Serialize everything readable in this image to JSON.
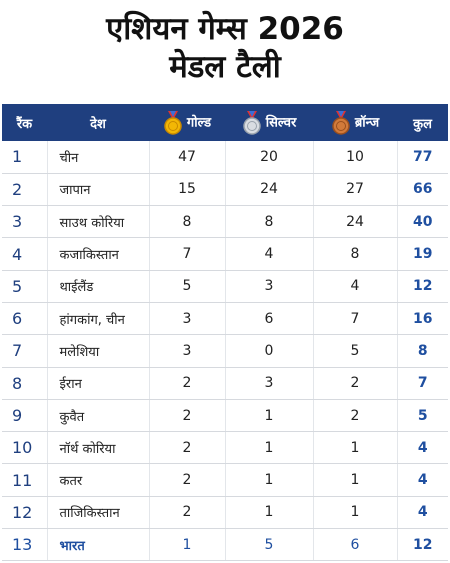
{
  "header": {
    "title_line1": "एशियन गेम्स 2026",
    "title_line2": "मेडल टैली"
  },
  "table": {
    "columns": [
      "रैंक",
      "देश",
      "गोल्ड",
      "सिल्वर",
      "ब्रॉन्ज",
      "कुल"
    ],
    "rows": [
      [
        1,
        "चीन",
        47,
        20,
        10,
        77
      ],
      [
        2,
        "जापान",
        15,
        24,
        27,
        66
      ],
      [
        3,
        "साउथ कोरिया",
        8,
        8,
        24,
        40
      ],
      [
        4,
        "कजाकिस्तान",
        7,
        4,
        8,
        19
      ],
      [
        5,
        "थाईलैंड",
        5,
        3,
        4,
        12
      ],
      [
        6,
        "हांगकांग, चीन",
        3,
        6,
        7,
        16
      ],
      [
        7,
        "मलेशिया",
        3,
        0,
        5,
        8
      ],
      [
        8,
        "ईरान",
        2,
        3,
        2,
        7
      ],
      [
        9,
        "कुवैत",
        2,
        1,
        2,
        5
      ],
      [
        10,
        "नॉर्थ कोरिया",
        2,
        1,
        1,
        4
      ],
      [
        11,
        "कतर",
        2,
        1,
        1,
        4
      ],
      [
        12,
        "ताजिकिस्तान",
        2,
        1,
        1,
        4
      ],
      [
        13,
        "भारत",
        1,
        5,
        6,
        12
      ]
    ]
  }
}
